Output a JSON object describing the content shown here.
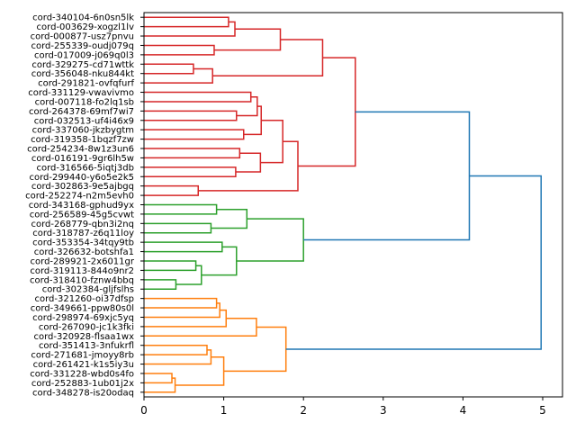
{
  "chart_data": {
    "type": "dendrogram",
    "orientation": "left",
    "title": "",
    "xlabel": "",
    "ylabel": "",
    "xlim": [
      0,
      5.25
    ],
    "xticks": [
      0,
      1,
      2,
      3,
      4,
      5
    ],
    "xtick_labels": [
      "0",
      "1",
      "2",
      "3",
      "4",
      "5"
    ],
    "grid": false,
    "colors": {
      "red": "#d62728",
      "green": "#2ca02c",
      "orange": "#ff7f0e",
      "blue": "#1f77b4"
    },
    "leaves": [
      "cord-340104-6n0sn5lk",
      "cord-003629-xogzl1lv",
      "cord-000877-usz7pnvu",
      "cord-255339-oudj079q",
      "cord-017009-j069q0l3",
      "cord-329275-cd71wttk",
      "cord-356048-nku844kt",
      "cord-291821-ovfqfurf",
      "cord-331129-vwavivmo",
      "cord-007118-fo2lq1sb",
      "cord-264378-69mf7wi7",
      "cord-032513-uf4i46x9",
      "cord-337060-jkzbygtm",
      "cord-319358-1bqzf7zw",
      "cord-254234-8w1z3un6",
      "cord-016191-9gr6lh5w",
      "cord-316566-5iqtj3db",
      "cord-299440-y6o5e2k5",
      "cord-302863-9e5ajbgq",
      "cord-252274-n2m5evh0",
      "cord-343168-gphud9yx",
      "cord-256589-45g5cvwt",
      "cord-268779-qbn3i2nq",
      "cord-318787-z6q11loy",
      "cord-353354-34tqy9tb",
      "cord-326632-botshfa1",
      "cord-289921-2x6011gr",
      "cord-319113-844o9nr2",
      "cord-318410-fznw4bbq",
      "cord-302384-gljfslhs",
      "cord-321260-oi37dfsp",
      "cord-349661-ppw80s0l",
      "cord-298974-69xjc5yq",
      "cord-267090-jc1k3fki",
      "cord-320928-flsaa1wx",
      "cord-351413-3nfukrfl",
      "cord-271681-jmoyy8rb",
      "cord-261421-k1s5iy3u",
      "cord-331228-wbd0s4fo",
      "cord-252883-1ub01j2x",
      "cord-348278-is20odaq"
    ],
    "merges": [
      {
        "id": "r1",
        "a": 0,
        "b": 1,
        "h": 1.06,
        "color": "red"
      },
      {
        "id": "r2",
        "a": "r1",
        "b": 2,
        "h": 1.14,
        "color": "red"
      },
      {
        "id": "r3",
        "a": 3,
        "b": 4,
        "h": 0.88,
        "color": "red"
      },
      {
        "id": "r4",
        "a": "r2",
        "b": "r3",
        "h": 1.71,
        "color": "red"
      },
      {
        "id": "r5",
        "a": 5,
        "b": 6,
        "h": 0.62,
        "color": "red"
      },
      {
        "id": "r6",
        "a": "r5",
        "b": 7,
        "h": 0.86,
        "color": "red"
      },
      {
        "id": "r7",
        "a": "r4",
        "b": "r6",
        "h": 2.24,
        "color": "red"
      },
      {
        "id": "r8",
        "a": 8,
        "b": 9,
        "h": 1.34,
        "color": "red"
      },
      {
        "id": "r9",
        "a": 10,
        "b": 11,
        "h": 1.16,
        "color": "red"
      },
      {
        "id": "r10",
        "a": "r8",
        "b": "r9",
        "h": 1.42,
        "color": "red"
      },
      {
        "id": "r11",
        "a": 12,
        "b": 13,
        "h": 1.25,
        "color": "red"
      },
      {
        "id": "r12",
        "a": "r10",
        "b": "r11",
        "h": 1.47,
        "color": "red"
      },
      {
        "id": "r13",
        "a": 14,
        "b": 15,
        "h": 1.2,
        "color": "red"
      },
      {
        "id": "r14",
        "a": 16,
        "b": 17,
        "h": 1.15,
        "color": "red"
      },
      {
        "id": "r15",
        "a": "r13",
        "b": "r14",
        "h": 1.46,
        "color": "red"
      },
      {
        "id": "r16",
        "a": "r12",
        "b": "r15",
        "h": 1.74,
        "color": "red"
      },
      {
        "id": "r17",
        "a": 18,
        "b": 19,
        "h": 0.68,
        "color": "red"
      },
      {
        "id": "r18",
        "a": "r16",
        "b": "r17",
        "h": 1.93,
        "color": "red"
      },
      {
        "id": "r19",
        "a": "r7",
        "b": "r18",
        "h": 2.65,
        "color": "red"
      },
      {
        "id": "g1",
        "a": 20,
        "b": 21,
        "h": 0.91,
        "color": "green"
      },
      {
        "id": "g2",
        "a": 22,
        "b": 23,
        "h": 0.84,
        "color": "green"
      },
      {
        "id": "g3",
        "a": "g1",
        "b": "g2",
        "h": 1.29,
        "color": "green"
      },
      {
        "id": "g4",
        "a": 24,
        "b": 25,
        "h": 0.98,
        "color": "green"
      },
      {
        "id": "g5",
        "a": 26,
        "b": 27,
        "h": 0.65,
        "color": "green"
      },
      {
        "id": "g6",
        "a": 28,
        "b": 29,
        "h": 0.4,
        "color": "green"
      },
      {
        "id": "g7",
        "a": "g5",
        "b": "g6",
        "h": 0.72,
        "color": "green"
      },
      {
        "id": "g8",
        "a": "g4",
        "b": "g7",
        "h": 1.16,
        "color": "green"
      },
      {
        "id": "g9",
        "a": "g3",
        "b": "g8",
        "h": 2.0,
        "color": "green"
      },
      {
        "id": "o1",
        "a": 30,
        "b": 31,
        "h": 0.91,
        "color": "orange"
      },
      {
        "id": "o2",
        "a": "o1",
        "b": 32,
        "h": 0.95,
        "color": "orange"
      },
      {
        "id": "o3",
        "a": "o2",
        "b": 33,
        "h": 1.03,
        "color": "orange"
      },
      {
        "id": "o4",
        "a": "o3",
        "b": 34,
        "h": 1.41,
        "color": "orange"
      },
      {
        "id": "o5",
        "a": 35,
        "b": 36,
        "h": 0.79,
        "color": "orange"
      },
      {
        "id": "o6",
        "a": "o5",
        "b": 37,
        "h": 0.84,
        "color": "orange"
      },
      {
        "id": "o7",
        "a": 38,
        "b": 39,
        "h": 0.35,
        "color": "orange"
      },
      {
        "id": "o8",
        "a": "o7",
        "b": 40,
        "h": 0.39,
        "color": "orange"
      },
      {
        "id": "o9",
        "a": "o6",
        "b": "o8",
        "h": 1.0,
        "color": "orange"
      },
      {
        "id": "o10",
        "a": "o4",
        "b": "o9",
        "h": 1.78,
        "color": "orange"
      },
      {
        "id": "b1",
        "a": "r19",
        "b": "g9",
        "h": 4.08,
        "color": "blue"
      },
      {
        "id": "b2",
        "a": "b1",
        "b": "o10",
        "h": 4.98,
        "color": "blue"
      }
    ]
  }
}
